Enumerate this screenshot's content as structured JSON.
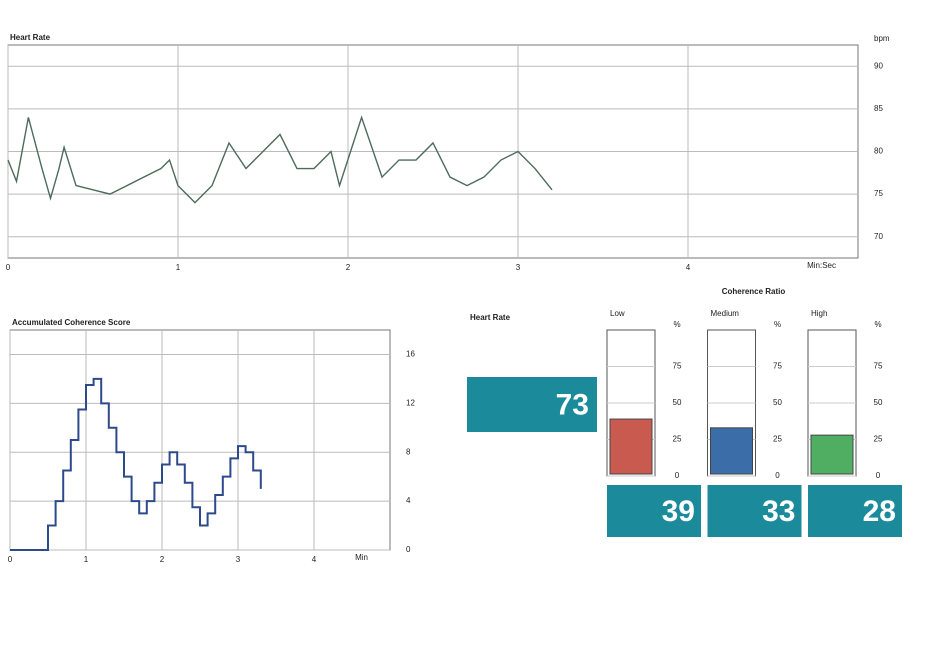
{
  "chart_data": [
    {
      "type": "line",
      "title": "Heart Rate",
      "y_unit": "bpm",
      "x_label": "Min:Sec",
      "color": "#4d6b5c",
      "grid": true,
      "x": [
        0,
        0.05,
        0.12,
        0.2,
        0.25,
        0.3,
        0.33,
        0.4,
        0.5,
        0.6,
        0.7,
        0.8,
        0.9,
        0.95,
        1.0,
        1.1,
        1.2,
        1.3,
        1.4,
        1.5,
        1.6,
        1.7,
        1.8,
        1.9,
        1.95,
        2.08,
        2.2,
        2.3,
        2.4,
        2.5,
        2.6,
        2.7,
        2.8,
        2.9,
        3.0,
        3.1,
        3.2
      ],
      "values": [
        79,
        76.5,
        84,
        78,
        74.5,
        78,
        80.5,
        76,
        75.5,
        75,
        76,
        77,
        78,
        79,
        76,
        74,
        76,
        81,
        78,
        80,
        82,
        78,
        78,
        80,
        76,
        84,
        77,
        79,
        79,
        81,
        77,
        76,
        77,
        79,
        80,
        78,
        75.5
      ],
      "xlim": [
        0,
        5
      ],
      "xticks": [
        0,
        1,
        2,
        3,
        4
      ],
      "ylim": [
        67.5,
        92.5
      ],
      "yticks": [
        70,
        75,
        80,
        85,
        90
      ]
    },
    {
      "type": "step",
      "title": "Accumulated Coherence Score",
      "x_label": "Min",
      "color": "#2c4a8c",
      "grid": true,
      "x": [
        0,
        0.1,
        0.2,
        0.3,
        0.4,
        0.5,
        0.6,
        0.7,
        0.8,
        0.9,
        1.0,
        1.1,
        1.2,
        1.3,
        1.4,
        1.5,
        1.6,
        1.7,
        1.8,
        1.9,
        2.0,
        2.1,
        2.2,
        2.3,
        2.4,
        2.5,
        2.6,
        2.7,
        2.8,
        2.9,
        3.0,
        3.1,
        3.2,
        3.3
      ],
      "values": [
        0,
        0,
        0,
        0,
        0,
        2,
        4,
        6.5,
        9,
        11.5,
        13.5,
        14,
        12,
        10,
        8,
        6,
        4,
        3,
        4,
        5.5,
        7,
        8,
        7,
        5.5,
        3.5,
        2,
        3,
        4.5,
        6,
        7.5,
        8.5,
        8,
        6.5,
        5
      ],
      "xlim": [
        0,
        5
      ],
      "xticks": [
        0,
        1,
        2,
        3,
        4
      ],
      "ylim": [
        0,
        18
      ],
      "yticks": [
        0,
        4,
        8,
        12,
        16
      ]
    },
    {
      "type": "value",
      "title": "Heart Rate",
      "value": 73,
      "color": "#1b8b9b"
    },
    {
      "type": "bar",
      "title": "Coherence Ratio",
      "y_unit": "%",
      "categories": [
        "Low",
        "Medium",
        "High"
      ],
      "values": [
        39,
        33,
        28
      ],
      "colors": [
        "#c95a50",
        "#3b6ea8",
        "#4fae62"
      ],
      "label_color": "#1b8b9b",
      "ylim": [
        0,
        100
      ],
      "yticks": [
        0,
        25,
        50,
        75
      ]
    }
  ]
}
